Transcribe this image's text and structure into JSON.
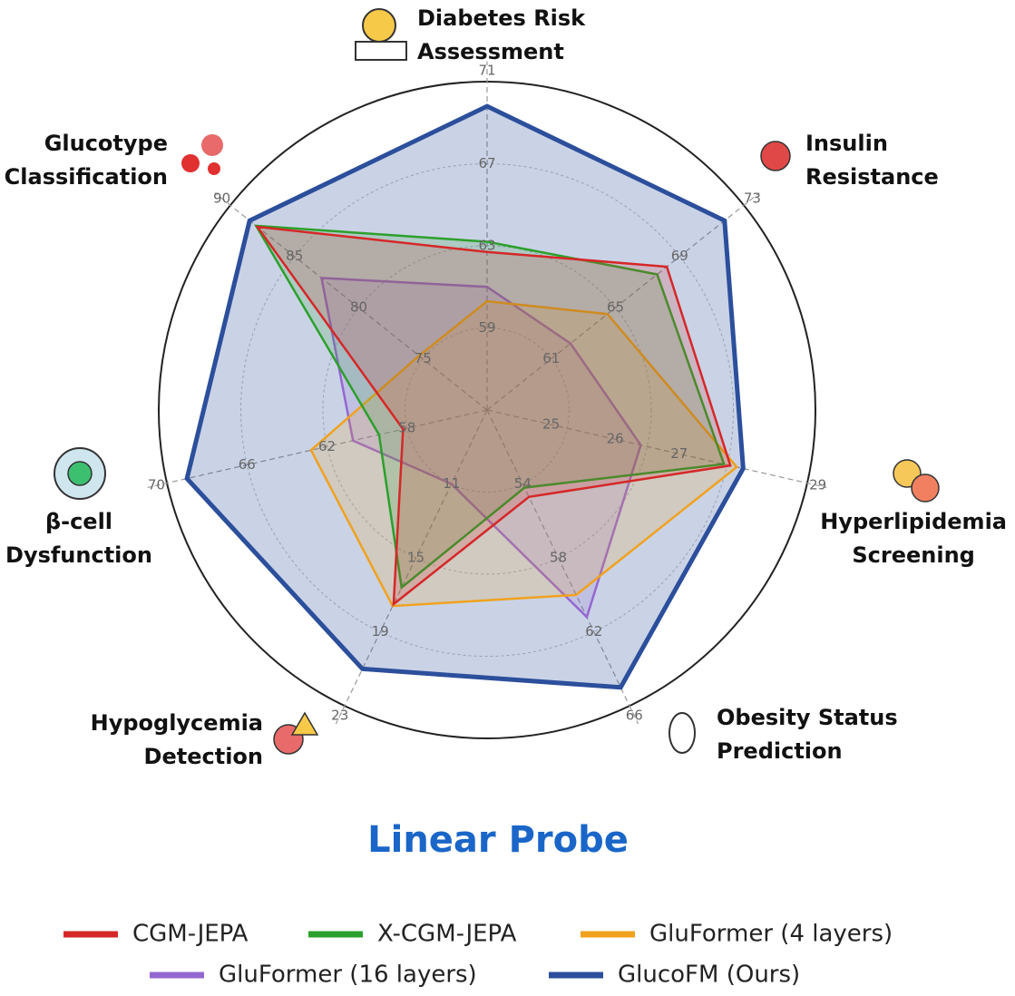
{
  "chart_data": {
    "type": "radar",
    "title": "Linear Probe",
    "categories": [
      "Diabetes Risk\nAssessment",
      "Insulin\nResistance",
      "Hyperlipidemia\nScreening",
      "Obesity Status\nPrediction",
      "Hypoglycemia\nDetection",
      "β-cell\nDysfunction",
      "Glucotype\nClassification"
    ],
    "rlims": [
      [
        55,
        71
      ],
      [
        57,
        73
      ],
      [
        24,
        29
      ],
      [
        50,
        66
      ],
      [
        7,
        23
      ],
      [
        54,
        70
      ],
      [
        70,
        90
      ]
    ],
    "rticks": [
      [
        59,
        63,
        67,
        71
      ],
      [
        61,
        65,
        69,
        73
      ],
      [
        25,
        26,
        27,
        29
      ],
      [
        54,
        58,
        62,
        66
      ],
      [
        11,
        15,
        19,
        23
      ],
      [
        58,
        62,
        66,
        70
      ],
      [
        75,
        80,
        85,
        90
      ]
    ],
    "series": [
      {
        "name": "CGM-JEPA",
        "color": "#d62728",
        "values": [
          62.7,
          68.2,
          27.8,
          54.7,
          17.5,
          58.2,
          87.9
        ]
      },
      {
        "name": "X-CGM-JEPA",
        "color": "#2ca02c",
        "values": [
          63.2,
          67.6,
          27.7,
          54.2,
          16.6,
          59.4,
          88.0
        ]
      },
      {
        "name": "GluFormer (4 layers)",
        "color": "#f0a21e",
        "values": [
          60.3,
          64.5,
          27.9,
          60.0,
          17.6,
          62.8,
          75.3
        ]
      },
      {
        "name": "GluFormer (16 layers)",
        "color": "#9467d0",
        "values": [
          61.0,
          62.2,
          26.4,
          61.2,
          11.0,
          60.7,
          82.9
        ]
      },
      {
        "name": "GlucoFM (Ours)",
        "color": "#2c4f9c",
        "values": [
          69.8,
          71.8,
          28.0,
          65.0,
          21.0,
          69.0,
          88.5
        ]
      }
    ]
  }
}
